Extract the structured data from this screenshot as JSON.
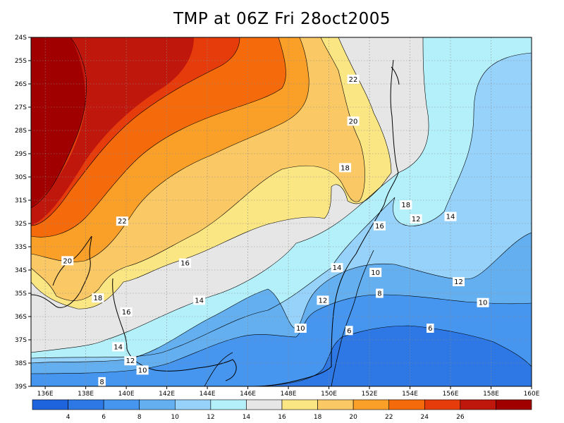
{
  "title": "TMP at 06Z Fri 28oct2005",
  "lat_labels": [
    "24S",
    "25S",
    "26S",
    "27S",
    "28S",
    "29S",
    "30S",
    "31S",
    "32S",
    "33S",
    "34S",
    "35S",
    "36S",
    "37S",
    "38S",
    "39S"
  ],
  "lon_labels": [
    "136E",
    "138E",
    "140E",
    "142E",
    "144E",
    "146E",
    "148E",
    "150E",
    "152E",
    "154E",
    "156E",
    "158E",
    "160E"
  ],
  "contour_labels": [
    {
      "text": "22",
      "lon": 151.2,
      "lat": -25.8
    },
    {
      "text": "20",
      "lon": 151.2,
      "lat": -27.6
    },
    {
      "text": "18",
      "lon": 150.8,
      "lat": -29.6
    },
    {
      "text": "18",
      "lon": 153.8,
      "lat": -31.2
    },
    {
      "text": "22",
      "lon": 139.8,
      "lat": -31.9
    },
    {
      "text": "12",
      "lon": 154.3,
      "lat": -31.8
    },
    {
      "text": "14",
      "lon": 156.0,
      "lat": -31.7
    },
    {
      "text": "16",
      "lon": 152.5,
      "lat": -32.1
    },
    {
      "text": "20",
      "lon": 137.1,
      "lat": -33.6
    },
    {
      "text": "16",
      "lon": 142.9,
      "lat": -33.7
    },
    {
      "text": "14",
      "lon": 150.4,
      "lat": -33.9
    },
    {
      "text": "10",
      "lon": 152.3,
      "lat": -34.1
    },
    {
      "text": "12",
      "lon": 156.4,
      "lat": -34.5
    },
    {
      "text": "18",
      "lon": 138.6,
      "lat": -35.2
    },
    {
      "text": "8",
      "lon": 152.5,
      "lat": -35.0
    },
    {
      "text": "14",
      "lon": 143.6,
      "lat": -35.3
    },
    {
      "text": "12",
      "lon": 149.7,
      "lat": -35.3
    },
    {
      "text": "10",
      "lon": 157.6,
      "lat": -35.4
    },
    {
      "text": "16",
      "lon": 140.0,
      "lat": -35.8
    },
    {
      "text": "10",
      "lon": 148.6,
      "lat": -36.5
    },
    {
      "text": "6",
      "lon": 151.0,
      "lat": -36.6
    },
    {
      "text": "6",
      "lon": 155.0,
      "lat": -36.5
    },
    {
      "text": "14",
      "lon": 139.6,
      "lat": -37.3
    },
    {
      "text": "12",
      "lon": 140.2,
      "lat": -37.9
    },
    {
      "text": "10",
      "lon": 140.8,
      "lat": -38.3
    },
    {
      "text": "8",
      "lon": 138.8,
      "lat": -38.8
    }
  ],
  "colorbar": {
    "colors": [
      "#1e64dc",
      "#2d78e4",
      "#4696ef",
      "#64afef",
      "#96d2fa",
      "#b4f0fa",
      "#e6e6e6",
      "#fae682",
      "#fac864",
      "#faa028",
      "#f56a0a",
      "#e63c0c",
      "#c0170d",
      "#a00000"
    ],
    "tick_labels": [
      "4",
      "6",
      "8",
      "10",
      "12",
      "14",
      "16",
      "18",
      "20",
      "22",
      "24",
      "26"
    ]
  }
}
